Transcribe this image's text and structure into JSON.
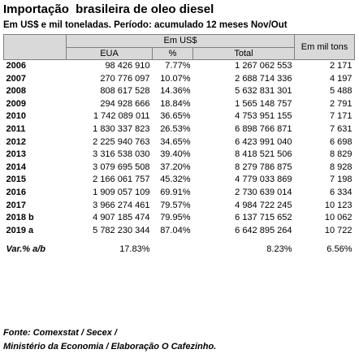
{
  "title": "Importação  brasileira de oleo diesel",
  "subtitle": "Em US$ e mil toneladas. Período: acumulado 12 meses Nov/Out",
  "header": {
    "em_usd": "Em US$",
    "eua": "EUA",
    "pct": "%",
    "total": "Total",
    "em_mil_tons": "Em mil tons"
  },
  "rows": [
    {
      "year": "2006",
      "eua": "98 426 910",
      "pct": "7.77%",
      "total": "1 267 062 553",
      "tons": "2 171"
    },
    {
      "year": "2007",
      "eua": "270 776 097",
      "pct": "10.07%",
      "total": "2 688 714 336",
      "tons": "4 197"
    },
    {
      "year": "2008",
      "eua": "808 617 528",
      "pct": "14.36%",
      "total": "5 632 831 301",
      "tons": "5 488"
    },
    {
      "year": "2009",
      "eua": "294 928 666",
      "pct": "18.84%",
      "total": "1 565 148 757",
      "tons": "2 791"
    },
    {
      "year": "2010",
      "eua": "1 742 089 011",
      "pct": "36.65%",
      "total": "4 753 951 155",
      "tons": "7 171"
    },
    {
      "year": "2011",
      "eua": "1 830 337 823",
      "pct": "26.53%",
      "total": "6 898 766 871",
      "tons": "7 631"
    },
    {
      "year": "2012",
      "eua": "2 225 940 763",
      "pct": "34.65%",
      "total": "6 423 991 040",
      "tons": "6 698"
    },
    {
      "year": "2013",
      "eua": "3 316 538 030",
      "pct": "39.40%",
      "total": "8 418 521 506",
      "tons": "8 829"
    },
    {
      "year": "2014",
      "eua": "3 079 695 508",
      "pct": "37.20%",
      "total": "8 279 786 875",
      "tons": "8 928"
    },
    {
      "year": "2015",
      "eua": "2 166 061 757",
      "pct": "45.32%",
      "total": "4 779 033 869",
      "tons": "7 198"
    },
    {
      "year": "2016",
      "eua": "1 909 057 109",
      "pct": "69.91%",
      "total": "2 730 639 014",
      "tons": "6 334"
    },
    {
      "year": "2017",
      "eua": "3 966 274 461",
      "pct": "79.57%",
      "total": "4 984 722 245",
      "tons": "10 123"
    },
    {
      "year": "2018 b",
      "eua": "4 907 185 474",
      "pct": "79.95%",
      "total": "6 137 715 652",
      "tons": "10 062"
    },
    {
      "year": "2019 a",
      "eua": "5 782 230 344",
      "pct": "87.04%",
      "total": "6 642 895 264",
      "tons": "10 722"
    }
  ],
  "variation": {
    "label": "Var.% a/b",
    "eua": "17.83%",
    "total": "8.23%",
    "tons": "6.56%"
  },
  "footer": {
    "line1": "Fonte: Comexstat / Secex /",
    "line2": "Ministério da Economia / Elaboração O Cafezinho."
  }
}
